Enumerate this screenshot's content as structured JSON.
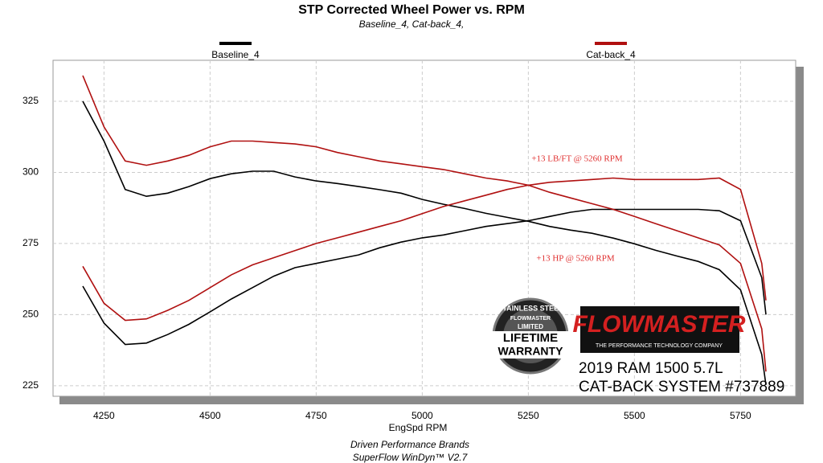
{
  "chart_data": {
    "type": "line",
    "title": "STP Corrected Wheel Power vs. RPM",
    "subtitle": "Baseline_4, Cat-back_4,",
    "x_label": "EngSpd  RPM",
    "x": [
      4200,
      4250,
      4300,
      4350,
      4400,
      4450,
      4500,
      4550,
      4600,
      4650,
      4700,
      4750,
      4800,
      4850,
      4900,
      4950,
      5000,
      5050,
      5100,
      5150,
      5200,
      5250,
      5300,
      5350,
      5400,
      5450,
      5500,
      5550,
      5600,
      5650,
      5700,
      5750,
      5800,
      5810
    ],
    "series": [
      {
        "name": "Baseline_4",
        "color": "#000000",
        "values": [
          260,
          247,
          239.5,
          240,
          243,
          246.6,
          251,
          255.5,
          259.5,
          263.5,
          266.5,
          268,
          269.5,
          271,
          273.5,
          275.5,
          277,
          278,
          279.5,
          281,
          282,
          283,
          284.5,
          286,
          287,
          287,
          287,
          287,
          287,
          287,
          286.5,
          283,
          263,
          250
        ],
        "torque": [
          325,
          311,
          294,
          291.6,
          292.7,
          295,
          297.8,
          299.5,
          300.4,
          300.4,
          298.4,
          297,
          296.1,
          295,
          293.9,
          292.7,
          290.5,
          288.8,
          287.3,
          285.6,
          284.2,
          282.8,
          281,
          279.7,
          278.6,
          276.9,
          274.9,
          272.6,
          270.6,
          268.7,
          265.8,
          258.7,
          236,
          225.3
        ]
      },
      {
        "name": "Cat-back_4",
        "color": "#b01010",
        "values": [
          267,
          254,
          248,
          248.5,
          251.5,
          255,
          259.5,
          264,
          267.5,
          270,
          272.5,
          275,
          277,
          279,
          281,
          283,
          285.5,
          288,
          290,
          292,
          294,
          295.5,
          296.5,
          297,
          297.5,
          298,
          297.5,
          297.5,
          297.5,
          297.5,
          298,
          294,
          268,
          255
        ],
        "torque": [
          334,
          316,
          304,
          302.5,
          304,
          306,
          309,
          311,
          311,
          310.5,
          310,
          309,
          307,
          305.5,
          304,
          303,
          302,
          301,
          299.5,
          298,
          297,
          295.5,
          293,
          291,
          289,
          287,
          284.5,
          282,
          279.5,
          277,
          274.5,
          268,
          245,
          230
        ]
      }
    ],
    "xlim": [
      4130,
      5880
    ],
    "xticks": [
      4250,
      4500,
      4750,
      5000,
      5250,
      5500,
      5750
    ],
    "ylim": [
      221.3,
      339.4
    ],
    "yticks": [
      225,
      250,
      275,
      300,
      325
    ],
    "grid": true,
    "annotations": [
      "+13 LB/FT @ 5260 RPM",
      "+13 HP @ 5260 RPM"
    ]
  },
  "footer": {
    "line1": "Driven Performance Brands",
    "line2": "SuperFlow WinDyn™  V2.7"
  },
  "logos": {
    "badge": [
      "STAINLESS STEEL",
      "FLOWMASTER",
      "LIMITED",
      "LIFETIME",
      "WARRANTY"
    ],
    "brand": "FLOWMASTER",
    "tagline": "THE PERFORMANCE TECHNOLOGY COMPANY",
    "vehicle": "2019 RAM 1500 5.7L",
    "system": "CAT-BACK SYSTEM #737889"
  }
}
